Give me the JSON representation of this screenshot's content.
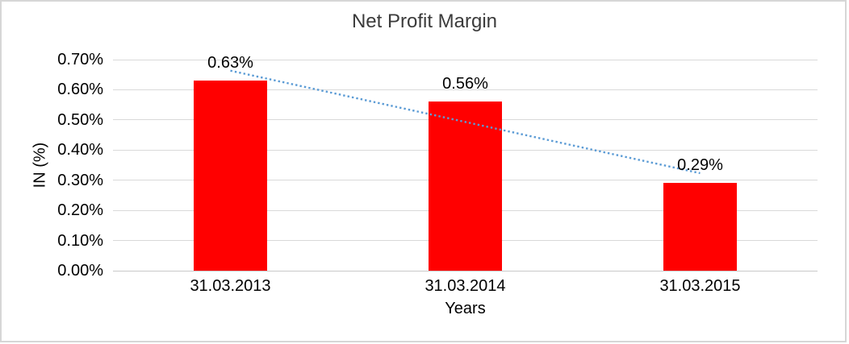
{
  "chart_data": {
    "type": "bar",
    "title": "Net Profit Margin",
    "xlabel": "Years",
    "ylabel": "IN (%)",
    "categories": [
      "31.03.2013",
      "31.03.2014",
      "31.03.2015"
    ],
    "values": [
      0.63,
      0.56,
      0.29
    ],
    "data_labels": [
      "0.63%",
      "0.56%",
      "0.29%"
    ],
    "ylim": [
      0,
      0.7
    ],
    "ytick_step": 0.1,
    "ytick_labels": [
      "0.00%",
      "0.10%",
      "0.20%",
      "0.30%",
      "0.40%",
      "0.50%",
      "0.60%",
      "0.70%"
    ],
    "grid": true,
    "legend": "none",
    "bar_color": "#ff0000",
    "trendline": {
      "type": "linear",
      "style": "dotted",
      "color": "#5b9bd5"
    }
  }
}
